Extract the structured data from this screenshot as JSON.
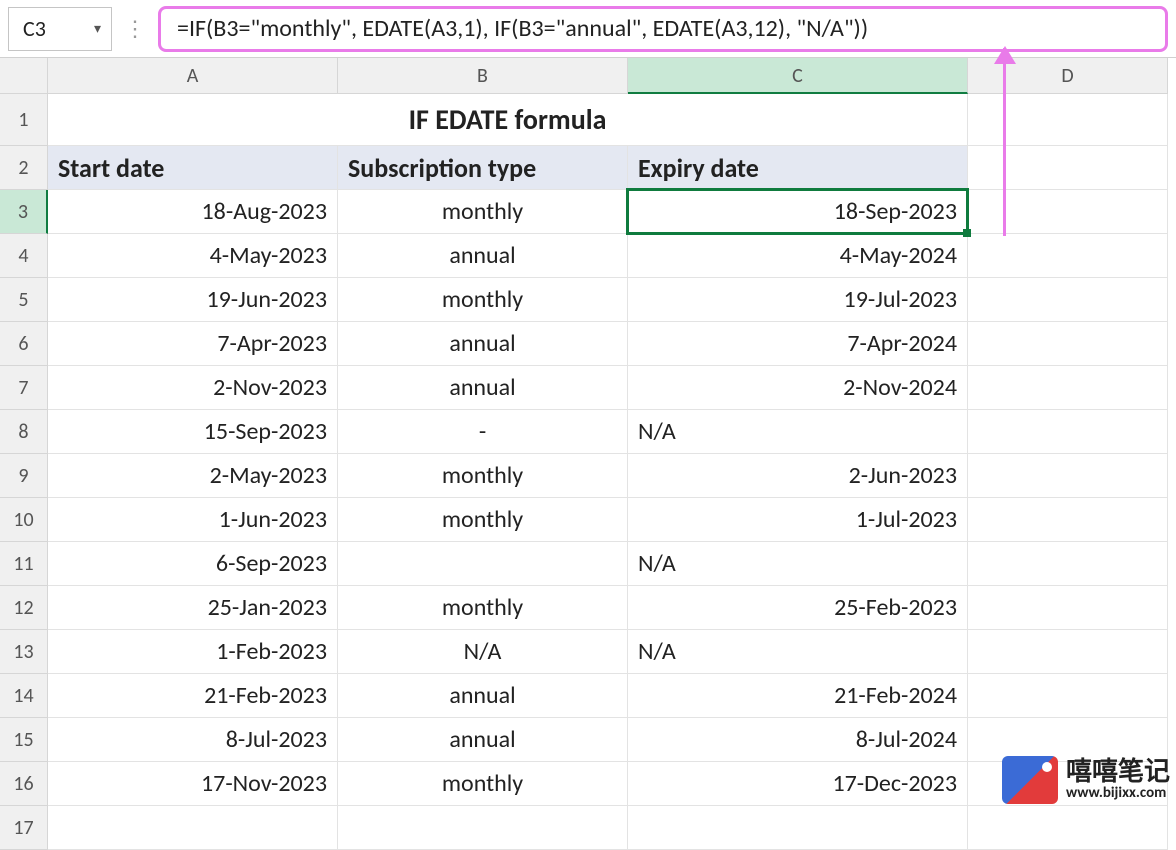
{
  "nameBox": "C3",
  "formula": "=IF(B3=\"monthly\", EDATE(A3,1), IF(B3=\"annual\", EDATE(A3,12), \"N/A\"))",
  "columns": [
    "A",
    "B",
    "C",
    "D"
  ],
  "rowNumbers": [
    "1",
    "2",
    "3",
    "4",
    "5",
    "6",
    "7",
    "8",
    "9",
    "10",
    "11",
    "12",
    "13",
    "14",
    "15",
    "16",
    "17"
  ],
  "selectedCell": {
    "row": 3,
    "col": "C"
  },
  "title": "IF EDATE formula",
  "headers": {
    "A": "Start date",
    "B": "Subscription type",
    "C": "Expiry date"
  },
  "rows": [
    {
      "A": "18-Aug-2023",
      "B": "monthly",
      "C": "18-Sep-2023",
      "cAlign": "r"
    },
    {
      "A": "4-May-2023",
      "B": "annual",
      "C": "4-May-2024",
      "cAlign": "r"
    },
    {
      "A": "19-Jun-2023",
      "B": "monthly",
      "C": "19-Jul-2023",
      "cAlign": "r"
    },
    {
      "A": "7-Apr-2023",
      "B": "annual",
      "C": "7-Apr-2024",
      "cAlign": "r"
    },
    {
      "A": "2-Nov-2023",
      "B": "annual",
      "C": "2-Nov-2024",
      "cAlign": "r"
    },
    {
      "A": "15-Sep-2023",
      "B": "-",
      "C": "N/A",
      "cAlign": "l"
    },
    {
      "A": "2-May-2023",
      "B": "monthly",
      "C": "2-Jun-2023",
      "cAlign": "r"
    },
    {
      "A": "1-Jun-2023",
      "B": "monthly",
      "C": "1-Jul-2023",
      "cAlign": "r"
    },
    {
      "A": "6-Sep-2023",
      "B": "",
      "C": "N/A",
      "cAlign": "l"
    },
    {
      "A": "25-Jan-2023",
      "B": "monthly",
      "C": "25-Feb-2023",
      "cAlign": "r"
    },
    {
      "A": "1-Feb-2023",
      "B": "N/A",
      "C": "N/A",
      "cAlign": "l"
    },
    {
      "A": "21-Feb-2023",
      "B": "annual",
      "C": "21-Feb-2024",
      "cAlign": "r"
    },
    {
      "A": "8-Jul-2023",
      "B": "annual",
      "C": "8-Jul-2024",
      "cAlign": "r"
    },
    {
      "A": "17-Nov-2023",
      "B": "monthly",
      "C": "17-Dec-2023",
      "cAlign": "r"
    }
  ],
  "watermark": {
    "cn": "嘻嘻笔记",
    "url": "www.bijixx.com"
  },
  "styling": {
    "formulaBarBorder": "#e97be9",
    "arrowColor": "#e97be9",
    "selectionBorder": "#0f7b3e",
    "headerFill": "#e4e8f2",
    "gridHeaderBg": "#f0f0f0",
    "gridHeaderSelBg": "#c9e8d6",
    "gridLine": "#e3e3e3",
    "titleFontSize": 28,
    "headerFontSize": 26,
    "cellFontSize": 24,
    "rowHeightTitle": 52,
    "rowHeightNormal": 44,
    "colWidths": {
      "rowHeader": 48,
      "A": 290,
      "B": 290,
      "C": 340,
      "D": 200
    }
  }
}
